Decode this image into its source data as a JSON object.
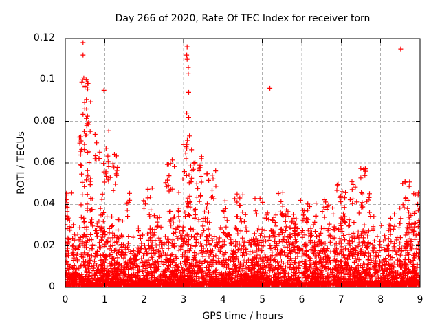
{
  "chart_data": {
    "type": "scatter",
    "title": "Day 266 of 2020, Rate Of TEC Index for receiver torn",
    "xlabel": "GPS time / hours",
    "ylabel": "ROTI / TECUs",
    "xlim": [
      0,
      9
    ],
    "ylim": [
      0,
      0.12
    ],
    "xtick_values": [
      0,
      1,
      2,
      3,
      4,
      5,
      6,
      7,
      8,
      9
    ],
    "xtick_labels": [
      "0",
      "1",
      "2",
      "3",
      "4",
      "5",
      "6",
      "7",
      "8",
      "9"
    ],
    "ytick_values": [
      0,
      0.02,
      0.04,
      0.06,
      0.08,
      0.1,
      0.12
    ],
    "ytick_labels": [
      "0",
      "0.02",
      "0.04",
      "0.06",
      "0.08",
      "0.1",
      "0.12"
    ],
    "grid": {
      "shown": true,
      "color": "#b0b0b0",
      "dash": "4 3"
    },
    "frame_color": "#000000",
    "background": "#ffffff",
    "marker": {
      "shape": "plus",
      "color": "#ff0000",
      "size": 7
    },
    "legend": {
      "shown": false
    },
    "scatter": {
      "seed": 20200266,
      "baseline": {
        "n": 5000,
        "y_min": 0.001,
        "x_step": 0.25,
        "max_y": [
          0.048,
          0.046,
          0.05,
          0.048,
          0.045,
          0.04,
          0.032,
          0.026,
          0.034,
          0.04,
          0.042,
          0.045,
          0.048,
          0.048,
          0.045,
          0.038,
          0.034,
          0.038,
          0.04,
          0.036,
          0.036,
          0.038,
          0.04,
          0.04,
          0.038,
          0.04,
          0.042,
          0.044,
          0.045,
          0.036,
          0.042,
          0.04,
          0.034,
          0.036,
          0.042,
          0.046,
          0.042
        ],
        "power": 3.5
      },
      "clusters_format": [
        "x_center",
        "x_spread",
        "y_min",
        "y_max",
        "count"
      ],
      "clusters": [
        [
          0.03,
          0.05,
          0.03,
          0.047,
          10
        ],
        [
          0.5,
          0.15,
          0.048,
          0.075,
          26
        ],
        [
          0.55,
          0.1,
          0.075,
          0.092,
          14
        ],
        [
          0.52,
          0.06,
          0.095,
          0.102,
          6
        ],
        [
          0.8,
          0.08,
          0.06,
          0.076,
          8
        ],
        [
          1.05,
          0.09,
          0.048,
          0.08,
          14
        ],
        [
          1.27,
          0.07,
          0.044,
          0.065,
          10
        ],
        [
          1.6,
          0.06,
          0.034,
          0.05,
          7
        ],
        [
          2.1,
          0.12,
          0.034,
          0.05,
          9
        ],
        [
          2.65,
          0.12,
          0.044,
          0.062,
          14
        ],
        [
          3.1,
          0.12,
          0.048,
          0.072,
          18
        ],
        [
          3.35,
          0.12,
          0.042,
          0.064,
          16
        ],
        [
          3.7,
          0.15,
          0.038,
          0.058,
          12
        ],
        [
          4.1,
          0.1,
          0.032,
          0.042,
          6
        ],
        [
          4.4,
          0.12,
          0.034,
          0.047,
          8
        ],
        [
          5.0,
          0.2,
          0.032,
          0.044,
          9
        ],
        [
          5.6,
          0.2,
          0.034,
          0.047,
          10
        ],
        [
          6.1,
          0.15,
          0.032,
          0.042,
          7
        ],
        [
          6.5,
          0.15,
          0.034,
          0.046,
          8
        ],
        [
          7.0,
          0.12,
          0.038,
          0.05,
          10
        ],
        [
          7.3,
          0.1,
          0.04,
          0.051,
          8
        ],
        [
          7.55,
          0.07,
          0.052,
          0.058,
          7
        ],
        [
          7.6,
          0.12,
          0.038,
          0.05,
          7
        ],
        [
          8.65,
          0.12,
          0.038,
          0.052,
          12
        ],
        [
          8.9,
          0.08,
          0.034,
          0.047,
          8
        ]
      ],
      "outliers": [
        [
          0.45,
          0.118
        ],
        [
          0.45,
          0.112
        ],
        [
          0.44,
          0.1
        ],
        [
          0.47,
          0.101
        ],
        [
          0.42,
          0.099
        ],
        [
          0.5,
          0.097
        ],
        [
          0.98,
          0.095
        ],
        [
          3.09,
          0.116
        ],
        [
          3.08,
          0.112
        ],
        [
          3.09,
          0.11
        ],
        [
          3.12,
          0.106
        ],
        [
          3.12,
          0.103
        ],
        [
          3.13,
          0.094
        ],
        [
          3.08,
          0.084
        ],
        [
          3.13,
          0.082
        ],
        [
          3.15,
          0.073
        ],
        [
          3.46,
          0.063
        ],
        [
          5.19,
          0.096
        ],
        [
          8.51,
          0.115
        ]
      ]
    }
  }
}
